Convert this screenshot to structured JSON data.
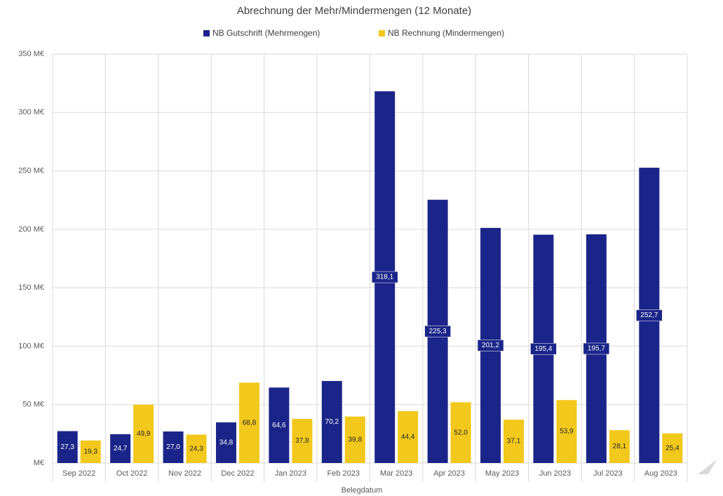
{
  "chart_data": {
    "type": "bar",
    "title": "Abrechnung der Mehr/Mindermengen (12 Monate)",
    "x_label": "Belegdatum",
    "categories": [
      "Sep 2022",
      "Oct 2022",
      "Nov 2022",
      "Dec 2022",
      "Jan 2023",
      "Feb 2023",
      "Mar 2023",
      "Apr 2023",
      "May 2023",
      "Jun 2023",
      "Jul 2023",
      "Aug 2023"
    ],
    "series": [
      {
        "name": "NB Gutschrift (Mehrmengen)",
        "color": "#1b2589",
        "values": [
          27.3,
          24.7,
          27.0,
          34.8,
          64.6,
          70.2,
          318.1,
          225.3,
          201.2,
          195.4,
          195.7,
          252.7
        ],
        "value_labels": [
          "27,3",
          "24,7",
          "27,0",
          "34,8",
          "64,6",
          "70,2",
          "318,1",
          "225,3",
          "201,2",
          "195,4",
          "195,7",
          "252,7"
        ]
      },
      {
        "name": "NB Rechnung (Mindermengen)",
        "color": "#f2c81c",
        "values": [
          19.3,
          49.9,
          24.3,
          68.8,
          37.8,
          39.8,
          44.4,
          52.0,
          37.1,
          53.9,
          28.1,
          25.4
        ],
        "value_labels": [
          "19,3",
          "49,9",
          "24,3",
          "68,8",
          "37,8",
          "39,8",
          "44,4",
          "52,0",
          "37,1",
          "53,9",
          "28,1",
          "25,4"
        ]
      }
    ],
    "ylim": [
      0,
      350
    ],
    "yticks": [
      {
        "value": 0,
        "label": "M€"
      },
      {
        "value": 50,
        "label": "50 M€"
      },
      {
        "value": 100,
        "label": "100 M€"
      },
      {
        "value": 150,
        "label": "150 M€"
      },
      {
        "value": 200,
        "label": "200 M€"
      },
      {
        "value": 250,
        "label": "250 M€"
      },
      {
        "value": 300,
        "label": "300 M€"
      },
      {
        "value": 350,
        "label": "350 M€"
      }
    ],
    "grid": true,
    "legend": "top"
  }
}
